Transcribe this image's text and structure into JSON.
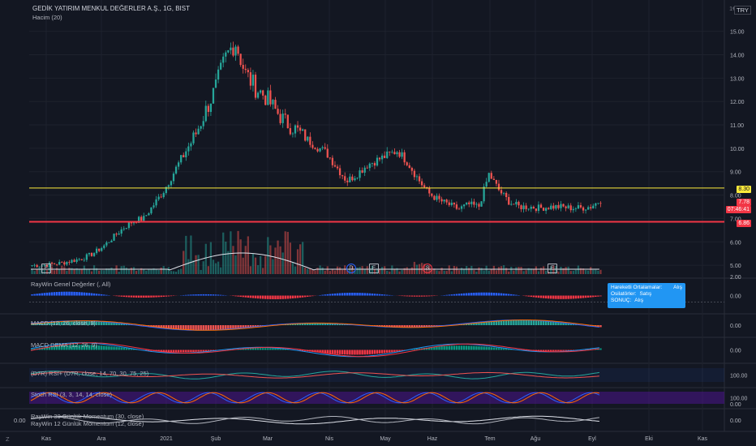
{
  "header": {
    "symbol_title": "GEDİK YATIRIM MENKUL DEĞERLER A.Ş., 1G, BIST",
    "volume_label": "Hacim (20)",
    "currency": "TRY",
    "log_toggle": "1€"
  },
  "price_axis": {
    "ticks": [
      "15.00",
      "14.00",
      "13.00",
      "12.00",
      "11.00",
      "10.00",
      "9.00",
      "8.00",
      "7.00",
      "6.00",
      "5.00"
    ],
    "tick_values": [
      15,
      14,
      13,
      12,
      11,
      10,
      9,
      8,
      7,
      6,
      5
    ],
    "resistance_level": "8.30",
    "current_price": "7.78",
    "countdown": "07:46:41",
    "support_level": "6.86",
    "sub_tick": "2.00"
  },
  "indicators": [
    {
      "id": "raywin",
      "label": "RayWin Genel Değerler (, All)",
      "tick": "0.00"
    },
    {
      "id": "macd",
      "label": "MACD (12, 26, close, 9)",
      "tick": "0.00"
    },
    {
      "id": "macd_dema",
      "label": "MACD DEMA (12, 26, 9)",
      "tick": "0.00"
    },
    {
      "id": "rsi",
      "label": "(D7R) RSI+ (D7R, close, 14, 70, 30, 75, 25)",
      "tick": "100.00"
    },
    {
      "id": "stoch",
      "label": "Stoch RSI (3, 3, 14, 14, close)",
      "tick": "100.00",
      "tick2": "0.00"
    },
    {
      "id": "momentum",
      "label1": "RayWin 30 Günlük Momentum (30, close)",
      "label2": "RayWin 12 Günlük Momentum (12, close)",
      "tick": "0.00",
      "left_tick": "0.00"
    }
  ],
  "tooltip": {
    "row1_label": "Hareketli Ortalamalar:",
    "row1_value": "Alış",
    "row2_label": "Osilatörler:",
    "row2_value": "Satış",
    "row3_label": "SONUÇ:",
    "row3_value": "Alış"
  },
  "event_badges": [
    "E",
    "E",
    "D",
    "E",
    "S",
    "E"
  ],
  "time_axis": {
    "labels": [
      "Kas",
      "Ara",
      "2021",
      "Şub",
      "Mar",
      "Nis",
      "May",
      "Haz",
      "Tem",
      "Ağu",
      "Eyl",
      "Eki",
      "Kas"
    ]
  },
  "corner_z": "Z",
  "colors": {
    "bg": "#131722",
    "up": "#26a69a",
    "down": "#ef5350",
    "resistance": "#ffeb3b",
    "support": "#f23645",
    "stoch_band": "#4a148c",
    "accent": "#2196f3"
  },
  "chart_data": {
    "type": "candlestick",
    "title": "GEDİK YATIRIM MENKUL DEĞERLER A.Ş., 1G, BIST",
    "ylim": [
      4.9,
      15.3
    ],
    "x": [
      "Kas",
      "Ara",
      "2021",
      "Şub",
      "Mar",
      "Nis",
      "May",
      "Haz",
      "Tem",
      "Ağu",
      "Eyl"
    ],
    "close_path": [
      5.0,
      5.0,
      5.05,
      5.1,
      5.2,
      5.3,
      5.5,
      5.8,
      6.2,
      6.6,
      6.9,
      7.0,
      7.6,
      8.2,
      9.0,
      9.8,
      10.5,
      11.5,
      12.5,
      13.8,
      14.6,
      13.2,
      12.6,
      12.2,
      11.6,
      11.1,
      10.8,
      10.4,
      10.1,
      9.8,
      9.2,
      8.6,
      8.9,
      9.3,
      9.5,
      9.7,
      9.9,
      9.4,
      8.7,
      8.1,
      7.8,
      7.6,
      7.4,
      7.6,
      7.5,
      8.9,
      8.2,
      7.7,
      7.5,
      7.5,
      7.45,
      7.5,
      7.5,
      7.45,
      7.45,
      7.5,
      7.78
    ],
    "resistance": 8.3,
    "support": 6.86,
    "last": 7.78
  }
}
